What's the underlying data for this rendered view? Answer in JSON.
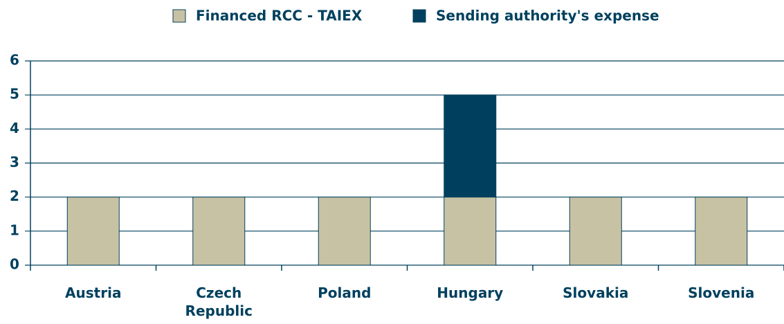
{
  "chart_data": {
    "type": "bar",
    "stacked": true,
    "categories": [
      "Austria",
      "Czech Republic",
      "Poland",
      "Hungary",
      "Slovakia",
      "Slovenia"
    ],
    "series": [
      {
        "name": "Financed RCC - TAIEX",
        "color": "#c8c2a4",
        "values": [
          2,
          2,
          2,
          2,
          2,
          2
        ]
      },
      {
        "name": "Sending authority's expense",
        "color": "#00405e",
        "values": [
          0,
          0,
          0,
          3,
          0,
          0
        ]
      }
    ],
    "ylim": [
      0,
      6
    ],
    "yticks": [
      0,
      1,
      2,
      3,
      4,
      5,
      6
    ],
    "grid": true,
    "legend": "top"
  }
}
